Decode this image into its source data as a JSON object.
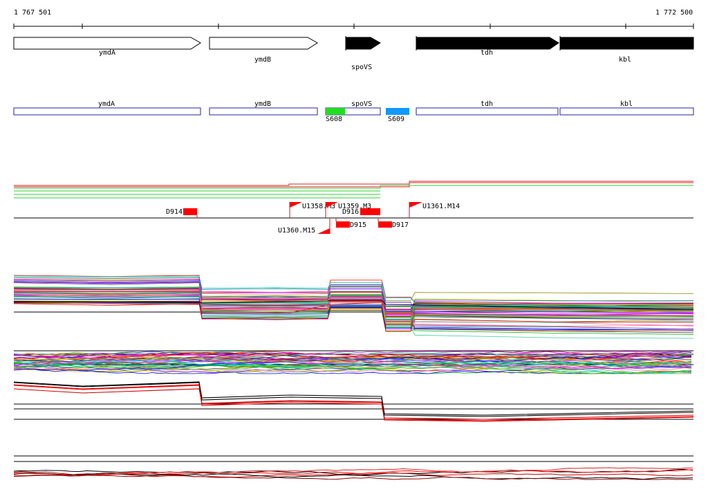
{
  "ruler": {
    "start": "1 767 501",
    "end": "1 772 500"
  },
  "colors": {
    "track_red": "#dd2222",
    "track_green": "#33cc33",
    "feature_blue": "#2222aa",
    "flag_red": "#ff0000",
    "s608": "#22dd22",
    "s609": "#1199ff"
  },
  "genes": [
    {
      "name": "ymdA",
      "style": "open"
    },
    {
      "name": "ymdB",
      "style": "open"
    },
    {
      "name": "spoVS",
      "style": "filled"
    },
    {
      "name": "tdh",
      "style": "filled"
    },
    {
      "name": "kbl",
      "style": "filled"
    }
  ],
  "annotations": [
    {
      "name": "ymdA"
    },
    {
      "name": "ymdB"
    },
    {
      "name": "spoVS"
    },
    {
      "name": "tdh"
    },
    {
      "name": "kbl"
    }
  ],
  "segments": [
    {
      "name": "S608",
      "color": "#22dd22"
    },
    {
      "name": "S609",
      "color": "#1199ff"
    }
  ],
  "markers": {
    "flags": [
      "U1358.M3",
      "U1359.M3",
      "U1360.M15",
      "U1361.M14"
    ],
    "blocks": [
      "D914",
      "D915",
      "D916",
      "D917"
    ]
  }
}
